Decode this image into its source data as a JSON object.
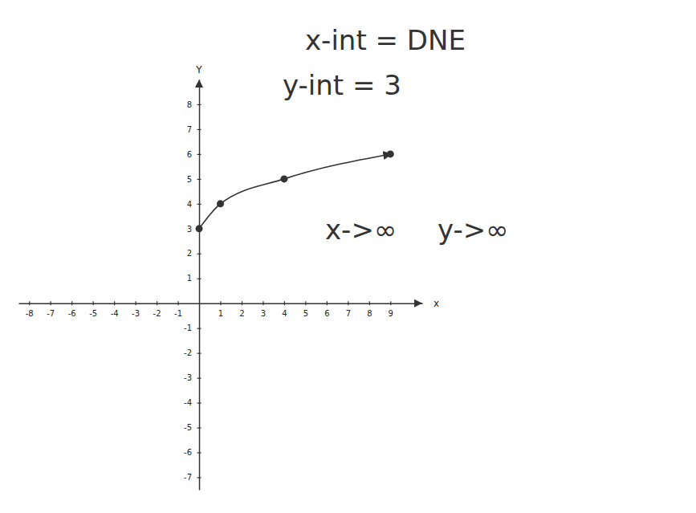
{
  "chart_data": {
    "type": "line",
    "marker": "circle",
    "line_style": "solid",
    "color": "#333333",
    "x_label": "x",
    "y_label": "Y",
    "annotations": [
      "x-int = DNE",
      "y-int = 3",
      "x->∞",
      "y->∞"
    ],
    "x": [
      0,
      1,
      4,
      9
    ],
    "values": [
      3,
      4,
      5,
      6
    ],
    "xlim": [
      -8.5,
      10.5
    ],
    "xticks": [
      -8,
      -7,
      -6,
      -5,
      -4,
      -3,
      -2,
      -1,
      1,
      2,
      3,
      4,
      5,
      6,
      7,
      8,
      9
    ],
    "ylim": [
      -7.5,
      9
    ],
    "yticks": [
      -7,
      -6,
      -5,
      -4,
      -3,
      -2,
      -1,
      1,
      2,
      3,
      4,
      5,
      6,
      7,
      8
    ],
    "grid": false
  }
}
